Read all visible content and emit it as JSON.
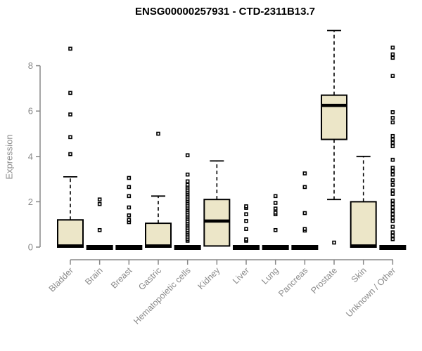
{
  "title": "ENSG00000257931 - CTD-2311B13.7",
  "chart_data": {
    "type": "boxplot",
    "title": "ENSG00000257931 - CTD-2311B13.7",
    "xlabel": "",
    "ylabel": "Expression",
    "yticks": [
      0,
      2,
      4,
      6,
      8
    ],
    "ylim": [
      0,
      9.9
    ],
    "grid": false,
    "legend": "none",
    "categories": [
      "Bladder",
      "Brain",
      "Breast",
      "Gastric",
      "Hematopoietic cells",
      "Kidney",
      "Liver",
      "Lung",
      "Pancreas",
      "Prostate",
      "Skin",
      "Unknown / Other"
    ],
    "colors": {
      "box_fill": "#ece6c8",
      "box_stroke": "#000000",
      "median": "#000000",
      "whisker": "#000000",
      "axis_line": "#888888",
      "tick_text": "#8a8a8a",
      "title_text": "#000000",
      "outlier_fill": "#ffffff",
      "outlier_stroke": "#000000",
      "background": "#ffffff"
    },
    "series": [
      {
        "name": "Bladder",
        "q1": 0,
        "median": 0.05,
        "q3": 1.2,
        "whisker_low": 0,
        "whisker_high": 3.1,
        "outliers": [
          4.1,
          4.85,
          5.85,
          6.8,
          8.75
        ]
      },
      {
        "name": "Brain",
        "q1": 0,
        "median": 0,
        "q3": 0,
        "whisker_low": 0,
        "whisker_high": 0,
        "outliers": [
          0.75,
          1.9,
          2.1
        ]
      },
      {
        "name": "Breast",
        "q1": 0,
        "median": 0,
        "q3": 0,
        "whisker_low": 0,
        "whisker_high": 0,
        "outliers": [
          1.1,
          1.2,
          1.4,
          1.75,
          2.25,
          2.65,
          3.05
        ]
      },
      {
        "name": "Gastric",
        "q1": 0,
        "median": 0.05,
        "q3": 1.05,
        "whisker_low": 0,
        "whisker_high": 2.25,
        "outliers": [
          5.0
        ]
      },
      {
        "name": "Hematopoietic cells",
        "q1": 0,
        "median": 0,
        "q3": 0,
        "whisker_low": 0,
        "whisker_high": 0,
        "outliers": [
          0.28,
          0.35,
          0.43,
          0.51,
          0.59,
          0.67,
          0.75,
          0.83,
          0.91,
          0.99,
          1.07,
          1.15,
          1.23,
          1.31,
          1.39,
          1.47,
          1.55,
          1.63,
          1.71,
          1.79,
          1.87,
          1.95,
          2.03,
          2.11,
          2.19,
          2.27,
          2.35,
          2.43,
          2.51,
          2.59,
          2.67,
          2.75,
          2.9,
          3.2,
          4.05
        ]
      },
      {
        "name": "Kidney",
        "q1": 0.05,
        "median": 1.15,
        "q3": 2.1,
        "whisker_low": 0,
        "whisker_high": 3.8,
        "outliers": []
      },
      {
        "name": "Liver",
        "q1": 0,
        "median": 0,
        "q3": 0,
        "whisker_low": 0,
        "whisker_high": 0,
        "outliers": [
          0.28,
          0.34,
          0.8,
          1.15,
          1.45,
          1.73,
          1.8
        ]
      },
      {
        "name": "Lung",
        "q1": 0,
        "median": 0,
        "q3": 0,
        "whisker_low": 0,
        "whisker_high": 0,
        "outliers": [
          0.75,
          1.45,
          1.52,
          1.7,
          1.95,
          2.25
        ]
      },
      {
        "name": "Pancreas",
        "q1": 0,
        "median": 0,
        "q3": 0,
        "whisker_low": 0,
        "whisker_high": 0,
        "outliers": [
          0.73,
          0.8,
          1.5,
          2.65,
          3.25
        ]
      },
      {
        "name": "Prostate",
        "q1": 4.75,
        "median": 6.25,
        "q3": 6.7,
        "whisker_low": 2.1,
        "whisker_high": 9.55,
        "outliers": [
          0.2
        ]
      },
      {
        "name": "Skin",
        "q1": 0,
        "median": 0.05,
        "q3": 2.0,
        "whisker_low": 0,
        "whisker_high": 4.0,
        "outliers": []
      },
      {
        "name": "Unknown / Other",
        "q1": 0,
        "median": 0,
        "q3": 0,
        "whisker_low": 0,
        "whisker_high": 0,
        "outliers": [
          0.35,
          0.5,
          0.65,
          0.9,
          1.15,
          1.3,
          1.45,
          1.6,
          1.75,
          1.9,
          2.05,
          2.35,
          2.5,
          2.75,
          2.95,
          3.2,
          3.35,
          3.5,
          3.85,
          4.45,
          4.6,
          4.75,
          4.9,
          5.5,
          5.7,
          5.95,
          7.55,
          8.35,
          8.5,
          8.8
        ]
      }
    ]
  }
}
